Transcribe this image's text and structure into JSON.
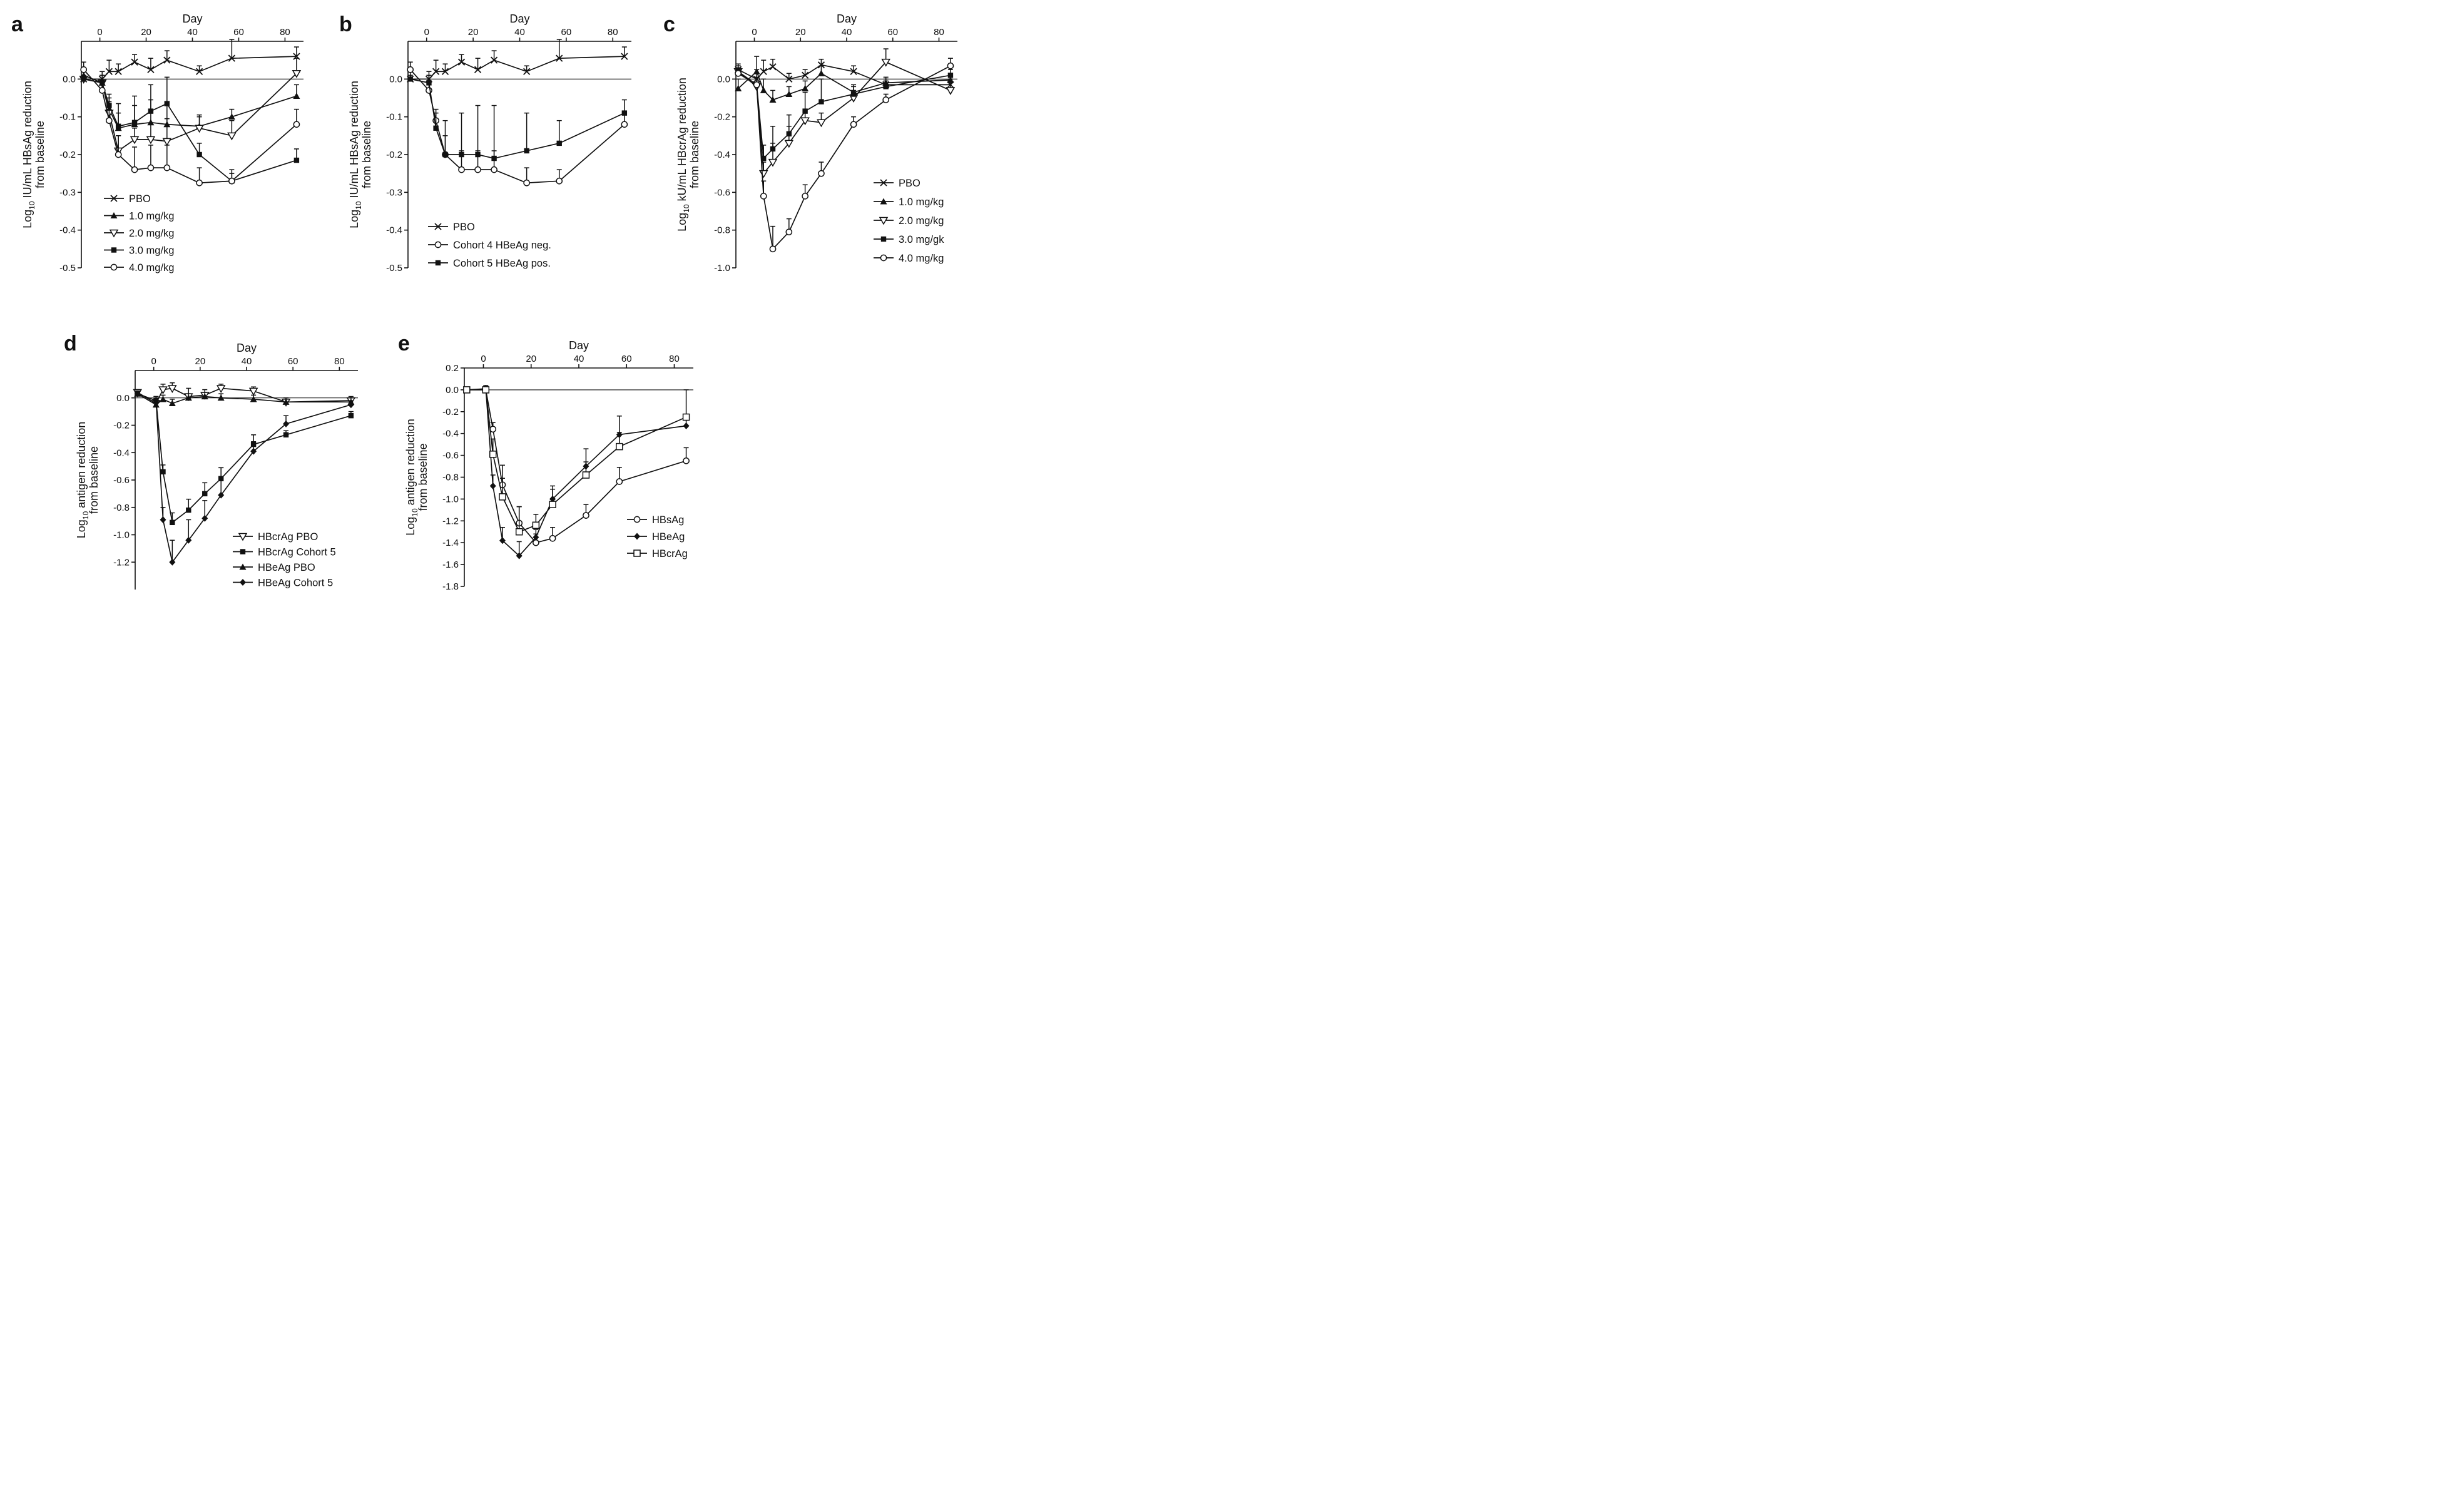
{
  "chart_data": [
    {
      "id": "a",
      "type": "line",
      "panel_label": "a",
      "xlabel": "Day",
      "ylabel": "Log10 IU/mL HBsAg reduction from baseline",
      "ylabel_main": "Log",
      "ylabel_sub": "10",
      "ylabel_rest": " IU/mL HBsAg reduction",
      "ylabel_line2": "from baseline",
      "xlim": [
        -8,
        88
      ],
      "ylim": [
        -0.5,
        0.1
      ],
      "xticks": [
        0,
        20,
        40,
        60,
        80
      ],
      "xtick_labels": [
        "0",
        "20",
        "40",
        "60",
        "80"
      ],
      "yticks": [
        0.0,
        -0.1,
        -0.2,
        -0.3,
        -0.4,
        -0.5
      ],
      "ytick_labels": [
        "0.0",
        "-0.1",
        "-0.2",
        "-0.3",
        "-0.4",
        "-0.5"
      ],
      "legend_position": "bottom-left",
      "series": [
        {
          "name": "PBO",
          "marker": "x",
          "x": [
            -7,
            1,
            4,
            8,
            15,
            22,
            29,
            43,
            57,
            85
          ],
          "y": [
            0.0,
            0.0,
            0.02,
            0.02,
            0.045,
            0.025,
            0.05,
            0.02,
            0.055,
            0.06
          ],
          "err": [
            0.02,
            0.02,
            0.03,
            0.02,
            0.02,
            0.03,
            0.025,
            0.015,
            0.05,
            0.025
          ]
        },
        {
          "name": "1.0 mg/kg",
          "marker": "triangle-up",
          "x": [
            -7,
            1,
            4,
            8,
            15,
            22,
            29,
            43,
            57,
            85
          ],
          "y": [
            0.01,
            -0.01,
            -0.08,
            -0.13,
            -0.12,
            -0.115,
            -0.12,
            -0.125,
            -0.1,
            -0.045
          ],
          "err": [
            0.01,
            0.02,
            0.03,
            0.04,
            0.05,
            0.06,
            0.05,
            0.03,
            0.02,
            0.03
          ]
        },
        {
          "name": "2.0 mg/kg",
          "marker": "triangle-down",
          "x": [
            -7,
            1,
            4,
            8,
            15,
            22,
            29,
            43,
            57,
            85
          ],
          "y": [
            0.0,
            -0.01,
            -0.09,
            -0.19,
            -0.16,
            -0.16,
            -0.165,
            -0.13,
            -0.15,
            0.015
          ],
          "err": [
            0.01,
            0.03,
            0.03,
            0.04,
            0.03,
            0.04,
            0.06,
            0.03,
            0.04,
            0.04
          ]
        },
        {
          "name": "3.0 mg/kg",
          "marker": "square",
          "x": [
            -7,
            1,
            4,
            8,
            15,
            22,
            29,
            43,
            57,
            85
          ],
          "y": [
            0.0,
            -0.01,
            -0.07,
            -0.125,
            -0.115,
            -0.085,
            -0.065,
            -0.2,
            -0.27,
            -0.215
          ],
          "err": [
            0.01,
            0.02,
            0.03,
            0.06,
            0.07,
            0.07,
            0.07,
            0.03,
            0.02,
            0.03
          ]
        },
        {
          "name": "4.0 mg/kg",
          "marker": "circle",
          "x": [
            -7,
            1,
            4,
            8,
            15,
            22,
            29,
            43,
            57,
            85
          ],
          "y": [
            0.025,
            -0.03,
            -0.11,
            -0.2,
            -0.24,
            -0.235,
            -0.235,
            -0.275,
            -0.27,
            -0.12
          ],
          "err": [
            0.02,
            0.02,
            0.03,
            0.05,
            0.06,
            0.06,
            0.06,
            0.04,
            0.03,
            0.04
          ]
        }
      ]
    },
    {
      "id": "b",
      "type": "line",
      "panel_label": "b",
      "xlabel": "Day",
      "ylabel": "Log10 IU/mL HBsAg reduction from baseline",
      "ylabel_main": "Log",
      "ylabel_sub": "10",
      "ylabel_rest": " IU/mL HBsAg reduction",
      "ylabel_line2": "from baseline",
      "xlim": [
        -8,
        88
      ],
      "ylim": [
        -0.5,
        0.1
      ],
      "xticks": [
        0,
        20,
        40,
        60,
        80
      ],
      "xtick_labels": [
        "0",
        "20",
        "40",
        "60",
        "80"
      ],
      "yticks": [
        0.0,
        -0.1,
        -0.2,
        -0.3,
        -0.4,
        -0.5
      ],
      "ytick_labels": [
        "0.0",
        "-0.1",
        "-0.2",
        "-0.3",
        "-0.4",
        "-0.5"
      ],
      "legend_position": "bottom-left",
      "series": [
        {
          "name": "PBO",
          "marker": "x",
          "x": [
            -7,
            1,
            4,
            8,
            15,
            22,
            29,
            43,
            57,
            85
          ],
          "y": [
            0.0,
            0.0,
            0.02,
            0.02,
            0.045,
            0.025,
            0.05,
            0.02,
            0.055,
            0.06
          ],
          "err": [
            0.02,
            0.02,
            0.03,
            0.02,
            0.02,
            0.03,
            0.025,
            0.015,
            0.05,
            0.025
          ]
        },
        {
          "name": "Cohort 4 HBeAg neg.",
          "marker": "circle",
          "x": [
            -7,
            1,
            4,
            8,
            15,
            22,
            29,
            43,
            57,
            85
          ],
          "y": [
            0.025,
            -0.03,
            -0.11,
            -0.2,
            -0.24,
            -0.24,
            -0.24,
            -0.275,
            -0.27,
            -0.12
          ],
          "err": [
            0.02,
            0.02,
            0.03,
            0.05,
            0.05,
            0.05,
            0.05,
            0.04,
            0.03,
            0.03
          ]
        },
        {
          "name": "Cohort 5 HBeAg pos.",
          "marker": "square",
          "x": [
            -7,
            1,
            4,
            8,
            15,
            22,
            29,
            43,
            57,
            85
          ],
          "y": [
            0.0,
            -0.01,
            -0.13,
            -0.2,
            -0.2,
            -0.2,
            -0.21,
            -0.19,
            -0.17,
            -0.09
          ],
          "err": [
            0.01,
            0.02,
            0.04,
            0.09,
            0.11,
            0.13,
            0.14,
            0.1,
            0.06,
            0.035
          ]
        }
      ]
    },
    {
      "id": "c",
      "type": "line",
      "panel_label": "c",
      "xlabel": "Day",
      "ylabel": "Log10 kU/mL HBcrAg reduction from baseline",
      "ylabel_main": "Log",
      "ylabel_sub": "10",
      "ylabel_rest": " kU/mL HBcrAg reduction",
      "ylabel_line2": "from baseline",
      "xlim": [
        -8,
        88
      ],
      "ylim": [
        -1.0,
        0.2
      ],
      "xticks": [
        0,
        20,
        40,
        60,
        80
      ],
      "xtick_labels": [
        "0",
        "20",
        "40",
        "60",
        "80"
      ],
      "yticks": [
        0.0,
        -0.2,
        -0.4,
        -0.6,
        -0.8,
        -1.0
      ],
      "ytick_labels": [
        "0.0",
        "-0.2",
        "-0.4",
        "-0.6",
        "-0.8",
        "-1.0"
      ],
      "legend_position": "right",
      "series": [
        {
          "name": "PBO",
          "marker": "x",
          "x": [
            -7,
            1,
            4,
            8,
            15,
            22,
            29,
            43,
            57,
            85
          ],
          "y": [
            0.05,
            0.0,
            0.04,
            0.065,
            0.0,
            0.02,
            0.075,
            0.04,
            -0.03,
            -0.03
          ],
          "err": [
            0.03,
            0.05,
            0.06,
            0.04,
            0.03,
            0.03,
            0.03,
            0.03,
            0.03,
            0.03
          ]
        },
        {
          "name": "1.0 mg/kg",
          "marker": "triangle-up",
          "x": [
            -7,
            1,
            4,
            8,
            15,
            22,
            29,
            43,
            57,
            85
          ],
          "y": [
            -0.05,
            0.04,
            -0.06,
            -0.11,
            -0.08,
            -0.05,
            0.03,
            -0.07,
            -0.02,
            -0.005
          ],
          "err": [
            0.05,
            0.08,
            0.06,
            0.05,
            0.04,
            0.04,
            0.04,
            0.03,
            0.03,
            0.03
          ]
        },
        {
          "name": "2.0 mg/kg",
          "marker": "triangle-down",
          "x": [
            -7,
            1,
            4,
            8,
            15,
            22,
            29,
            43,
            57,
            85
          ],
          "y": [
            0.04,
            -0.04,
            -0.5,
            -0.44,
            -0.34,
            -0.22,
            -0.23,
            -0.1,
            0.09,
            -0.06
          ],
          "err": [
            0.03,
            0.05,
            0.06,
            0.1,
            0.09,
            0.06,
            0.05,
            0.04,
            0.07,
            0.04
          ]
        },
        {
          "name": "3.0 mg/gk",
          "marker": "square",
          "x": [
            -7,
            1,
            4,
            8,
            15,
            22,
            29,
            43,
            57,
            85
          ],
          "y": [
            0.04,
            -0.03,
            -0.42,
            -0.37,
            -0.29,
            -0.17,
            -0.12,
            -0.08,
            -0.04,
            0.02
          ],
          "err": [
            0.03,
            0.04,
            0.07,
            0.12,
            0.1,
            0.1,
            0.12,
            0.05,
            0.03,
            0.03
          ]
        },
        {
          "name": "4.0 mg/kg",
          "marker": "circle",
          "x": [
            -7,
            1,
            4,
            8,
            15,
            22,
            29,
            43,
            57,
            85
          ],
          "y": [
            0.03,
            -0.03,
            -0.62,
            -0.9,
            -0.81,
            -0.62,
            -0.5,
            -0.24,
            -0.11,
            0.07
          ],
          "err": [
            0.03,
            0.04,
            0.08,
            0.12,
            0.07,
            0.06,
            0.06,
            0.04,
            0.03,
            0.04
          ]
        }
      ]
    },
    {
      "id": "d",
      "type": "line",
      "panel_label": "d",
      "xlabel": "Day",
      "ylabel": "Log10 antigen reduction from baseline",
      "ylabel_main": "Log",
      "ylabel_sub": "10",
      "ylabel_rest": " antigen reduction",
      "ylabel_line2": "from baseline",
      "xlim": [
        -8,
        88
      ],
      "ylim": [
        -1.4,
        0.2
      ],
      "xticks": [
        0,
        20,
        40,
        60,
        80
      ],
      "xtick_labels": [
        "0",
        "20",
        "40",
        "60",
        "80"
      ],
      "yticks": [
        0.0,
        -0.2,
        -0.4,
        -0.6,
        -0.8,
        -1.0,
        -1.2
      ],
      "ytick_labels": [
        "0.0",
        "-0.2",
        "-0.4",
        "-0.6",
        "-0.8",
        "-1.0",
        "-1.2"
      ],
      "legend_position": "bottom-right",
      "series": [
        {
          "name": "HBcrAg PBO",
          "marker": "triangle-down",
          "x": [
            -7,
            1,
            4,
            8,
            15,
            22,
            29,
            43,
            57,
            85
          ],
          "y": [
            0.04,
            -0.04,
            0.06,
            0.07,
            0.01,
            0.02,
            0.07,
            0.05,
            -0.03,
            -0.02
          ],
          "err": [
            0.02,
            0.03,
            0.04,
            0.04,
            0.06,
            0.04,
            0.03,
            0.03,
            0.03,
            0.03
          ]
        },
        {
          "name": "HBcrAg Cohort 5",
          "marker": "square",
          "x": [
            -7,
            1,
            4,
            8,
            15,
            22,
            29,
            43,
            57,
            85
          ],
          "y": [
            0.03,
            -0.02,
            -0.54,
            -0.91,
            -0.82,
            -0.7,
            -0.59,
            -0.34,
            -0.27,
            -0.13
          ],
          "err": [
            0.02,
            0.03,
            0.05,
            0.07,
            0.08,
            0.08,
            0.08,
            0.07,
            0.03,
            0.03
          ]
        },
        {
          "name": "HBeAg PBO",
          "marker": "triangle-up",
          "x": [
            -7,
            1,
            4,
            8,
            15,
            22,
            29,
            43,
            57,
            85
          ],
          "y": [
            0.03,
            -0.05,
            -0.01,
            -0.04,
            0.0,
            0.01,
            0.0,
            -0.01,
            -0.03,
            -0.03
          ],
          "err": [
            0.02,
            0.03,
            0.03,
            0.03,
            0.03,
            0.03,
            0.03,
            0.03,
            0.03,
            0.03
          ]
        },
        {
          "name": "HBeAg Cohort 5",
          "marker": "diamond",
          "x": [
            -7,
            1,
            4,
            8,
            15,
            22,
            29,
            43,
            57,
            85
          ],
          "y": [
            0.03,
            -0.02,
            -0.89,
            -1.2,
            -1.04,
            -0.88,
            -0.71,
            -0.39,
            -0.19,
            -0.05
          ],
          "err": [
            0.02,
            0.03,
            0.09,
            0.16,
            0.15,
            0.13,
            0.2,
            0.07,
            0.06,
            0.03
          ]
        }
      ]
    },
    {
      "id": "e",
      "type": "line",
      "panel_label": "e",
      "xlabel": "Day",
      "ylabel": "Log10 antigen reduction from baseline",
      "ylabel_main": "Log",
      "ylabel_sub": "10",
      "ylabel_rest": " antigen reduction",
      "ylabel_line2": "from baseline",
      "xlim": [
        -8,
        88
      ],
      "ylim": [
        -1.8,
        0.2
      ],
      "xticks": [
        0,
        20,
        40,
        60,
        80
      ],
      "xtick_labels": [
        "0",
        "20",
        "40",
        "60",
        "80"
      ],
      "yticks": [
        0.2,
        0.0,
        -0.2,
        -0.4,
        -0.6,
        -0.8,
        -1.0,
        -1.2,
        -1.4,
        -1.6,
        -1.8
      ],
      "ytick_labels": [
        "0.2",
        "0.0",
        "-0.2",
        "-0.4",
        "-0.6",
        "-0.8",
        "-1.0",
        "-1.2",
        "-1.4",
        "-1.6",
        "-1.8"
      ],
      "legend_position": "bottom-right",
      "series": [
        {
          "name": "HBsAg",
          "marker": "circle",
          "x": [
            -7,
            1,
            4,
            8,
            15,
            22,
            29,
            43,
            57,
            85
          ],
          "y": [
            0.0,
            0.0,
            -0.36,
            -0.87,
            -1.22,
            -1.4,
            -1.36,
            -1.15,
            -0.84,
            -0.65
          ],
          "err": [
            0.02,
            0.03,
            0.06,
            0.18,
            0.15,
            0.08,
            0.1,
            0.1,
            0.13,
            0.12
          ]
        },
        {
          "name": "HBeAg",
          "marker": "diamond",
          "x": [
            -7,
            1,
            4,
            8,
            15,
            22,
            29,
            43,
            57,
            85
          ],
          "y": [
            0.0,
            0.01,
            -0.88,
            -1.38,
            -1.52,
            -1.35,
            -1.0,
            -0.7,
            -0.41,
            -0.33
          ],
          "err": [
            0.02,
            0.03,
            0.1,
            0.12,
            0.13,
            0.07,
            0.12,
            0.16,
            0.17,
            0.1
          ]
        },
        {
          "name": "HBcrAg",
          "marker": "square-open",
          "x": [
            -7,
            1,
            4,
            8,
            15,
            22,
            29,
            43,
            57,
            85
          ],
          "y": [
            0.0,
            0.0,
            -0.59,
            -0.98,
            -1.3,
            -1.24,
            -1.05,
            -0.78,
            -0.52,
            -0.25
          ],
          "err": [
            0.02,
            0.03,
            0.14,
            0.17,
            0.23,
            0.1,
            0.14,
            0.12,
            0.13,
            0.25
          ]
        }
      ]
    }
  ]
}
